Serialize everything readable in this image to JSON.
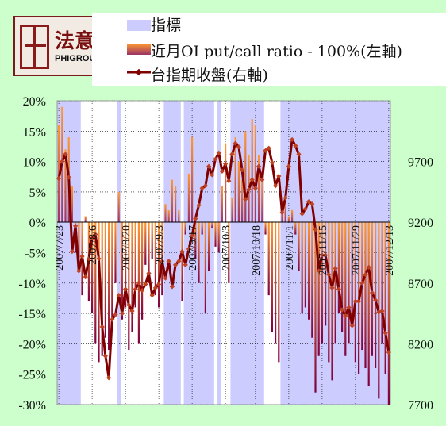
{
  "logo": {
    "zh": "法意",
    "en": "PHIGROUP"
  },
  "legend": [
    {
      "label": "指標",
      "kind": "area",
      "color": "#ccccff"
    },
    {
      "label": "近月OI put/call ratio - 100%(左軸)",
      "kind": "bar",
      "color": "#ff9933"
    },
    {
      "label": "台指期收盤(右軸)",
      "kind": "line",
      "color": "#800000"
    }
  ],
  "chart_data": {
    "type": "bar",
    "left_axis": {
      "min": -30,
      "max": 20,
      "step": 5,
      "ticks": [
        "20%",
        "15%",
        "10%",
        "5%",
        "0%",
        "-5%",
        "-10%",
        "-15%",
        "-20%",
        "-25%",
        "-30%"
      ]
    },
    "right_axis": {
      "min": 7700,
      "max": 10200,
      "ticks": [
        9700,
        9200,
        8700,
        8200,
        7700
      ]
    },
    "x_ticks": [
      "2007/7/23",
      "2007/8/6",
      "2007/8/20",
      "2007/9/3",
      "2007/9/17",
      "2007/10/3",
      "2007/10/18",
      "2007/11/1",
      "2007/11/15",
      "2007/11/29",
      "2007/12/13"
    ],
    "indicator_on": [
      1,
      1,
      1,
      1,
      1,
      1,
      1,
      0,
      0,
      0,
      0,
      0,
      0,
      0,
      0,
      0,
      0,
      0,
      1,
      0,
      0,
      0,
      0,
      0,
      0,
      0,
      0,
      0,
      0,
      0,
      0,
      0,
      1,
      1,
      1,
      1,
      1,
      0,
      1,
      1,
      1,
      1,
      1,
      1,
      1,
      1,
      1,
      0,
      1,
      0,
      0,
      0,
      1,
      1,
      1,
      1,
      1,
      1,
      1,
      1,
      1,
      1,
      0,
      0,
      0,
      0,
      0,
      1,
      1,
      1,
      1,
      1,
      1,
      1,
      1,
      1,
      1,
      1,
      1,
      1,
      1,
      1,
      1,
      1,
      1,
      1,
      1,
      1,
      1,
      1,
      1,
      1,
      1,
      1,
      1,
      1,
      1,
      1,
      1,
      1
    ],
    "ratio_pct": [
      16,
      19,
      12,
      14,
      6,
      -5,
      -8,
      -12,
      1,
      -13,
      -15,
      -20,
      -23,
      -22,
      -19,
      -21,
      -17,
      -10,
      5,
      -16,
      -14,
      -21,
      -18,
      -14,
      -20,
      -16,
      -7,
      -10,
      -6,
      -12,
      -14,
      -12,
      3,
      2,
      7,
      6,
      2,
      -13,
      -2,
      8,
      14,
      -6,
      -10,
      -2,
      -15,
      -8,
      -1,
      -4,
      -5,
      6,
      13,
      -10,
      4,
      14,
      10,
      7,
      15,
      11,
      17,
      16,
      11,
      7,
      -2,
      -12,
      -18,
      -20,
      -23,
      3,
      4,
      1,
      2,
      -2,
      -8,
      -15,
      -14,
      -16,
      -19,
      -28,
      -22,
      -20,
      -17,
      -23,
      -26,
      -20,
      -15,
      -18,
      -22,
      -20,
      -17,
      -23,
      -25,
      -21,
      -24,
      -27,
      -22,
      -24,
      -29,
      -20,
      -25,
      -30
    ],
    "close": [
      9560,
      9700,
      9760,
      9570,
      8960,
      9170,
      8800,
      8920,
      8750,
      8900,
      9070,
      9100,
      8900,
      8340,
      8100,
      7920,
      8400,
      8440,
      8600,
      8450,
      8650,
      8520,
      8470,
      8650,
      8700,
      8640,
      8690,
      8780,
      8600,
      8660,
      8690,
      8880,
      8740,
      8880,
      8670,
      8850,
      8880,
      8960,
      8850,
      8980,
      9090,
      9230,
      9340,
      9480,
      9500,
      9660,
      9590,
      9720,
      9770,
      9620,
      9680,
      9540,
      9760,
      9850,
      9820,
      9630,
      9390,
      9470,
      9550,
      9480,
      9660,
      9550,
      9790,
      9810,
      9690,
      9500,
      9580,
      9280,
      9400,
      9660,
      9880,
      9830,
      9760,
      9270,
      9310,
      9370,
      9350,
      9140,
      8800,
      8930,
      8930,
      8770,
      8660,
      8820,
      8650,
      8480,
      8430,
      8500,
      8350,
      8550,
      8550,
      8700,
      8770,
      8830,
      8620,
      8560,
      8460,
      8470,
      8290,
      8130
    ],
    "close_end": [
      8130,
      8090
    ]
  }
}
